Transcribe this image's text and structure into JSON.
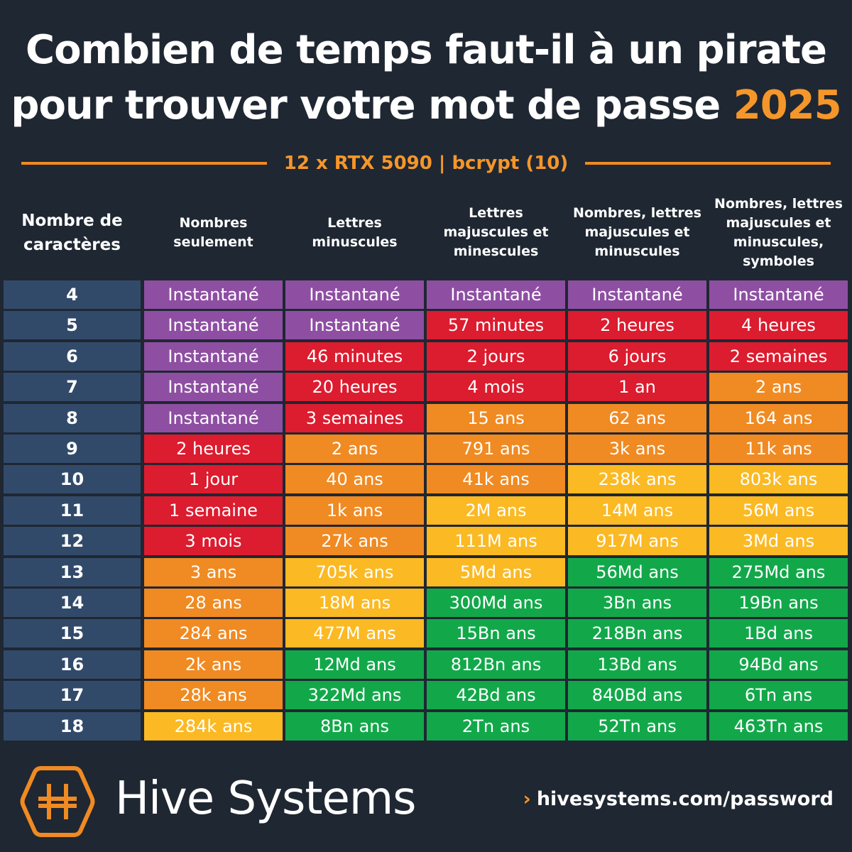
{
  "title_line1": "Combien de temps faut-il à un pirate",
  "title_line2": "pour trouver votre mot de passe",
  "title_year": "2025",
  "subtitle": "12 x RTX 5090 | bcrypt (10)",
  "colors": {
    "background": "#1f2732",
    "navy": "#324a6a",
    "P": "#8e4fa3",
    "R": "#dc1c2f",
    "O": "#f08a22",
    "Y": "#fbb923",
    "G": "#12a84a",
    "accent": "#f5962a"
  },
  "chart_data": {
    "type": "table",
    "columns": [
      "Nombre de caractères",
      "Nombres seulement",
      "Lettres minuscules",
      "Lettres majuscules et minescules",
      "Nombres, lettres majuscules et minuscules",
      "Nombres, lettres majuscules et minuscules, symboles"
    ],
    "rows": [
      {
        "chars": "4",
        "values": [
          "Instantané",
          "Instantané",
          "Instantané",
          "Instantané",
          "Instantané"
        ],
        "colors": [
          "P",
          "P",
          "P",
          "P",
          "P"
        ]
      },
      {
        "chars": "5",
        "values": [
          "Instantané",
          "Instantané",
          "57 minutes",
          "2 heures",
          "4 heures"
        ],
        "colors": [
          "P",
          "P",
          "R",
          "R",
          "R"
        ]
      },
      {
        "chars": "6",
        "values": [
          "Instantané",
          "46 minutes",
          "2 jours",
          "6 jours",
          "2 semaines"
        ],
        "colors": [
          "P",
          "R",
          "R",
          "R",
          "R"
        ]
      },
      {
        "chars": "7",
        "values": [
          "Instantané",
          "20 heures",
          "4 mois",
          "1 an",
          "2 ans"
        ],
        "colors": [
          "P",
          "R",
          "R",
          "R",
          "O"
        ]
      },
      {
        "chars": "8",
        "values": [
          "Instantané",
          "3 semaines",
          "15 ans",
          "62 ans",
          "164 ans"
        ],
        "colors": [
          "P",
          "R",
          "O",
          "O",
          "O"
        ]
      },
      {
        "chars": "9",
        "values": [
          "2 heures",
          "2 ans",
          "791 ans",
          "3k ans",
          "11k ans"
        ],
        "colors": [
          "R",
          "O",
          "O",
          "O",
          "O"
        ]
      },
      {
        "chars": "10",
        "values": [
          "1 jour",
          "40 ans",
          "41k ans",
          "238k ans",
          "803k ans"
        ],
        "colors": [
          "R",
          "O",
          "O",
          "Y",
          "Y"
        ]
      },
      {
        "chars": "11",
        "values": [
          "1 semaine",
          "1k ans",
          "2M ans",
          "14M ans",
          "56M ans"
        ],
        "colors": [
          "R",
          "O",
          "Y",
          "Y",
          "Y"
        ]
      },
      {
        "chars": "12",
        "values": [
          "3 mois",
          "27k ans",
          "111M ans",
          "917M ans",
          "3Md ans"
        ],
        "colors": [
          "R",
          "O",
          "Y",
          "Y",
          "Y"
        ]
      },
      {
        "chars": "13",
        "values": [
          "3 ans",
          "705k ans",
          "5Md ans",
          "56Md ans",
          "275Md ans"
        ],
        "colors": [
          "O",
          "Y",
          "Y",
          "G",
          "G"
        ]
      },
      {
        "chars": "14",
        "values": [
          "28 ans",
          "18M ans",
          "300Md ans",
          "3Bn ans",
          "19Bn ans"
        ],
        "colors": [
          "O",
          "Y",
          "G",
          "G",
          "G"
        ]
      },
      {
        "chars": "15",
        "values": [
          "284 ans",
          "477M ans",
          "15Bn ans",
          "218Bn ans",
          "1Bd ans"
        ],
        "colors": [
          "O",
          "Y",
          "G",
          "G",
          "G"
        ]
      },
      {
        "chars": "16",
        "values": [
          "2k ans",
          "12Md ans",
          "812Bn ans",
          "13Bd ans",
          "94Bd ans"
        ],
        "colors": [
          "O",
          "G",
          "G",
          "G",
          "G"
        ]
      },
      {
        "chars": "17",
        "values": [
          "28k ans",
          "322Md ans",
          "42Bd ans",
          "840Bd ans",
          "6Tn ans"
        ],
        "colors": [
          "O",
          "G",
          "G",
          "G",
          "G"
        ]
      },
      {
        "chars": "18",
        "values": [
          "284k ans",
          "8Bn ans",
          "2Tn ans",
          "52Tn ans",
          "463Tn ans"
        ],
        "colors": [
          "Y",
          "G",
          "G",
          "G",
          "G"
        ]
      }
    ]
  },
  "footer": {
    "brand": "Hive Systems",
    "url": "hivesystems.com/password",
    "chevron": "›",
    "logo_icon": "hive-hexagon-logo"
  }
}
